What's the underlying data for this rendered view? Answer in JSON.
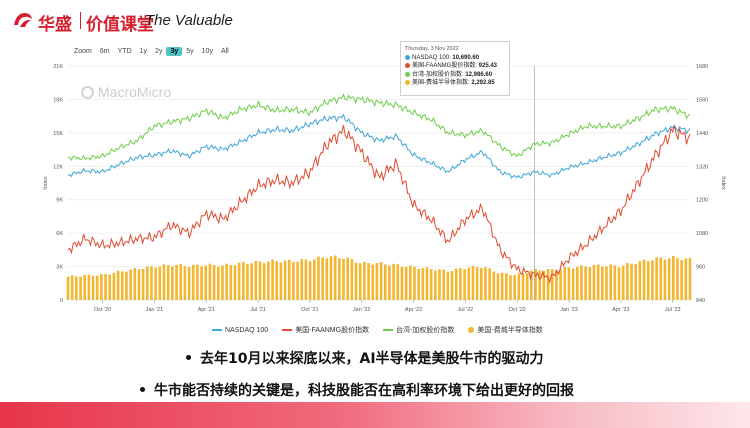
{
  "header": {
    "brand_cn": "华盛",
    "brand_sub": "价值课堂",
    "brand_en": "The Valuable"
  },
  "zoom": [
    "Zoom",
    "6m",
    "YTD",
    "1y",
    "2y",
    "3y",
    "5y",
    "10y",
    "All"
  ],
  "zoom_active": "3y",
  "watermark": "MacroMicro",
  "tooltip": {
    "date": "Thursday, 3 Nov 2022",
    "rows": [
      {
        "label": "NASDAQ 100:",
        "value": "10,690.60",
        "color": "#3ea6d8"
      },
      {
        "label": "美国-FAANMG股价指数:",
        "value": "925.43",
        "color": "#e04a2f"
      },
      {
        "label": "台湾-加权股价指数:",
        "value": "12,986.60",
        "color": "#6ccf4a"
      },
      {
        "label": "美国-费城半导体指数:",
        "value": "2,292.85",
        "color": "#f2b630"
      }
    ]
  },
  "bullets": [
    "去年10月以来探底以来，AI半导体是美股牛市的驱动力",
    "牛市能否持续的关键是，科技股能否在高利率环境下给出更好的回报"
  ],
  "colors": {
    "nasdaq": "#3ea6d8",
    "faanmg": "#e04a2f",
    "taiwan": "#6ccf4a",
    "sox": "#f2b630",
    "brand": "#d5202f"
  },
  "chart_data": {
    "type": "line",
    "title": "",
    "left_axis": {
      "label": "Index",
      "ticks": [
        "0",
        "3K",
        "6K",
        "9K",
        "12K",
        "15K",
        "18K",
        "21K"
      ],
      "range": [
        0,
        21000
      ]
    },
    "right_axis": {
      "label": "Index",
      "ticks": [
        "840",
        "960",
        "1080",
        "1200",
        "1320",
        "1440",
        "1560",
        "1680"
      ],
      "range": [
        840,
        1680
      ]
    },
    "x_ticks": [
      "Oct '20",
      "Jan '21",
      "Apr '21",
      "Jul '21",
      "Oct '21",
      "Jan '22",
      "Apr '22",
      "Jul '22",
      "Oct '22",
      "Jan '23",
      "Apr '23",
      "Jul '23"
    ],
    "x": [
      "2020-08",
      "2020-09",
      "2020-10",
      "2020-11",
      "2020-12",
      "2021-01",
      "2021-02",
      "2021-03",
      "2021-04",
      "2021-05",
      "2021-06",
      "2021-07",
      "2021-08",
      "2021-09",
      "2021-10",
      "2021-11",
      "2021-12",
      "2022-01",
      "2022-02",
      "2022-03",
      "2022-04",
      "2022-05",
      "2022-06",
      "2022-07",
      "2022-08",
      "2022-09",
      "2022-10",
      "2022-11",
      "2022-12",
      "2023-01",
      "2023-02",
      "2023-03",
      "2023-04",
      "2023-05",
      "2023-06",
      "2023-07",
      "2023-08"
    ],
    "series": [
      {
        "name": "NASDAQ 100",
        "axis": "left",
        "values": [
          11200,
          11600,
          11500,
          12200,
          12800,
          13000,
          13400,
          12900,
          13800,
          13500,
          14200,
          15000,
          15300,
          15200,
          15800,
          16300,
          16400,
          15000,
          14300,
          14700,
          13000,
          12300,
          11500,
          12600,
          13300,
          11500,
          11000,
          11500,
          11200,
          11900,
          12300,
          12800,
          13200,
          14000,
          14900,
          15500,
          15200
        ]
      },
      {
        "name": "美国-FAANMG股价指数",
        "axis": "right",
        "values": [
          1020,
          1060,
          1035,
          1045,
          1060,
          1065,
          1110,
          1080,
          1150,
          1130,
          1190,
          1250,
          1270,
          1260,
          1300,
          1400,
          1450,
          1370,
          1280,
          1330,
          1180,
          1130,
          1050,
          1130,
          1170,
          1020,
          950,
          930,
          920,
          990,
          1040,
          1100,
          1160,
          1260,
          1360,
          1450,
          1420
        ]
      },
      {
        "name": "台湾-加权股价指数",
        "axis": "left",
        "values": [
          12800,
          12700,
          12900,
          13700,
          14300,
          15600,
          16000,
          16300,
          17000,
          16300,
          17100,
          17500,
          17000,
          17100,
          16800,
          17800,
          18200,
          18000,
          17700,
          17500,
          16800,
          16200,
          15000,
          14800,
          15200,
          13800,
          12900,
          14000,
          14100,
          14900,
          15600,
          15600,
          15600,
          16300,
          17100,
          17200,
          16500
        ]
      },
      {
        "name": "美国-费城半导体指数",
        "axis": "left",
        "type": "bar",
        "values": [
          2100,
          2200,
          2250,
          2550,
          2800,
          3000,
          3150,
          3050,
          3150,
          3100,
          3300,
          3400,
          3500,
          3500,
          3600,
          3900,
          3800,
          3300,
          3300,
          3150,
          2950,
          2800,
          2600,
          2900,
          3000,
          2400,
          2250,
          2700,
          2700,
          2900,
          3050,
          3100,
          3050,
          3400,
          3700,
          3800,
          3650
        ]
      }
    ],
    "legend": [
      "NASDAQ 100",
      "美国-FAANMG股价指数",
      "台湾-加权股价指数",
      "美国-费城半导体指数"
    ],
    "legend_position": "bottom",
    "grid": true,
    "annotation_date": "2022-11"
  }
}
